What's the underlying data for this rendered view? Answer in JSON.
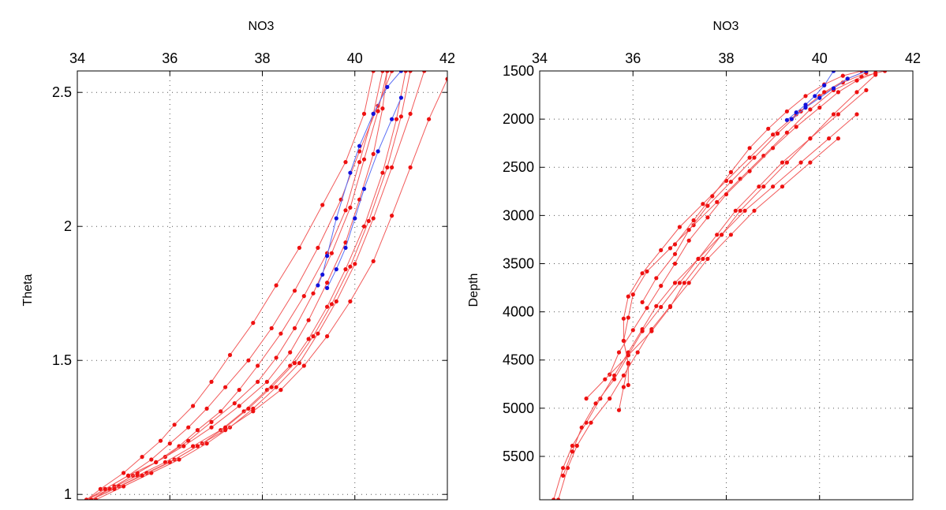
{
  "colors": {
    "profile": "#f25a5a",
    "profile_marker": "#ee1111",
    "highlight": "#5a6ef5",
    "highlight_marker": "#1111dd",
    "grid": "#555555"
  },
  "chart_data": [
    {
      "type": "line",
      "title": "NO3",
      "xlabel": "",
      "ylabel": "Theta",
      "xlim": [
        34,
        42
      ],
      "ylim": [
        0.98,
        2.58
      ],
      "xticks": [
        34,
        36,
        38,
        40,
        42
      ],
      "yticks": [
        1,
        1.5,
        2,
        2.5
      ],
      "x_axis_position": "top",
      "y_reversed": false,
      "grid": true,
      "series": [
        {
          "color": "red",
          "x": [
            34.2,
            34.5,
            35.0,
            35.4,
            35.8,
            36.1,
            36.5,
            36.9,
            37.3,
            37.8,
            38.3,
            38.8,
            39.3,
            39.8,
            40.2,
            40.4
          ],
          "y": [
            0.98,
            1.02,
            1.08,
            1.14,
            1.2,
            1.26,
            1.33,
            1.42,
            1.52,
            1.64,
            1.78,
            1.92,
            2.08,
            2.24,
            2.42,
            2.58
          ]
        },
        {
          "color": "red",
          "x": [
            34.3,
            34.7,
            35.2,
            35.7,
            36.2,
            36.6,
            37.1,
            37.5,
            37.9,
            38.4,
            38.9,
            39.4,
            39.8,
            40.1,
            40.4,
            40.6
          ],
          "y": [
            0.98,
            1.02,
            1.07,
            1.12,
            1.18,
            1.24,
            1.31,
            1.39,
            1.48,
            1.6,
            1.74,
            1.9,
            2.06,
            2.24,
            2.42,
            2.58
          ]
        },
        {
          "color": "red",
          "x": [
            34.2,
            34.6,
            35.1,
            35.6,
            36.0,
            36.4,
            36.8,
            37.2,
            37.7,
            38.2,
            38.7,
            39.2,
            39.7,
            40.1,
            40.5,
            40.8
          ],
          "y": [
            0.98,
            1.02,
            1.07,
            1.13,
            1.19,
            1.25,
            1.32,
            1.4,
            1.5,
            1.62,
            1.76,
            1.92,
            2.1,
            2.28,
            2.45,
            2.58
          ]
        },
        {
          "color": "red",
          "x": [
            34.3,
            34.8,
            35.3,
            35.9,
            36.4,
            36.9,
            37.4,
            37.9,
            38.3,
            38.7,
            39.1,
            39.5,
            39.9,
            40.2,
            40.5,
            40.7
          ],
          "y": [
            0.98,
            1.03,
            1.08,
            1.14,
            1.2,
            1.27,
            1.34,
            1.42,
            1.51,
            1.62,
            1.75,
            1.9,
            2.07,
            2.25,
            2.43,
            2.58
          ]
        },
        {
          "color": "red",
          "x": [
            34.2,
            34.7,
            35.3,
            35.9,
            36.5,
            37.1,
            37.6,
            38.1,
            38.6,
            39.0,
            39.4,
            39.8,
            40.2,
            40.6,
            40.9,
            41.1
          ],
          "y": [
            0.98,
            1.02,
            1.07,
            1.12,
            1.18,
            1.24,
            1.31,
            1.39,
            1.48,
            1.58,
            1.7,
            1.84,
            2.0,
            2.2,
            2.4,
            2.58
          ]
        },
        {
          "color": "red",
          "x": [
            34.3,
            34.9,
            35.5,
            36.1,
            36.7,
            37.2,
            37.7,
            38.2,
            38.7,
            39.1,
            39.5,
            39.9,
            40.3,
            40.7,
            41.0,
            41.2
          ],
          "y": [
            0.98,
            1.03,
            1.08,
            1.13,
            1.19,
            1.25,
            1.32,
            1.4,
            1.49,
            1.59,
            1.71,
            1.85,
            2.02,
            2.22,
            2.41,
            2.58
          ]
        },
        {
          "color": "red",
          "x": [
            34.4,
            35.0,
            35.6,
            36.2,
            36.8,
            37.3,
            37.8,
            38.3,
            38.8,
            39.2,
            39.6,
            40.0,
            40.4,
            40.8,
            41.2,
            41.5
          ],
          "y": [
            0.98,
            1.03,
            1.08,
            1.13,
            1.19,
            1.25,
            1.32,
            1.4,
            1.49,
            1.6,
            1.72,
            1.86,
            2.03,
            2.22,
            2.42,
            2.58
          ]
        },
        {
          "color": "red",
          "x": [
            34.3,
            34.8,
            35.4,
            36.0,
            36.6,
            37.2,
            37.8,
            38.4,
            38.9,
            39.4,
            39.9,
            40.4,
            40.8,
            41.2,
            41.6,
            42.0
          ],
          "y": [
            0.98,
            1.02,
            1.07,
            1.12,
            1.18,
            1.24,
            1.31,
            1.39,
            1.48,
            1.59,
            1.72,
            1.87,
            2.04,
            2.22,
            2.4,
            2.55
          ]
        },
        {
          "color": "red",
          "x": [
            34.2,
            34.6,
            35.1,
            35.7,
            36.3,
            36.9,
            37.5,
            38.1,
            38.6,
            39.0,
            39.4,
            39.8,
            40.1,
            40.4,
            40.6,
            40.7
          ],
          "y": [
            0.98,
            1.02,
            1.07,
            1.12,
            1.18,
            1.25,
            1.33,
            1.42,
            1.53,
            1.65,
            1.79,
            1.94,
            2.1,
            2.27,
            2.44,
            2.58
          ]
        },
        {
          "color": "blue",
          "x": [
            39.2,
            39.3,
            39.4,
            39.6,
            39.9,
            40.1,
            40.4,
            40.7,
            41.0
          ],
          "y": [
            1.78,
            1.82,
            1.89,
            2.03,
            2.2,
            2.3,
            2.42,
            2.52,
            2.58
          ]
        },
        {
          "color": "blue",
          "x": [
            39.4,
            39.6,
            39.8,
            40.0,
            40.2,
            40.5,
            40.8,
            41.0
          ],
          "y": [
            1.77,
            1.84,
            1.92,
            2.03,
            2.14,
            2.28,
            2.4,
            2.48
          ]
        }
      ]
    },
    {
      "type": "line",
      "title": "NO3",
      "xlabel": "",
      "ylabel": "Depth",
      "xlim": [
        34,
        42
      ],
      "ylim": [
        1500,
        5950
      ],
      "xticks": [
        34,
        36,
        38,
        40,
        42
      ],
      "yticks": [
        1500,
        2000,
        2500,
        3000,
        3500,
        4000,
        4500,
        5000,
        5500
      ],
      "x_axis_position": "top",
      "y_reversed": true,
      "grid": true,
      "series": [
        {
          "color": "red",
          "x": [
            34.4,
            34.6,
            34.8,
            35.1,
            35.5,
            35.8,
            36.1,
            36.4,
            36.8,
            37.2,
            37.6,
            38.1,
            38.6,
            39.2,
            39.8,
            40.4
          ],
          "y": [
            5950,
            5620,
            5390,
            5150,
            4900,
            4660,
            4420,
            4180,
            3940,
            3700,
            3450,
            3200,
            2950,
            2700,
            2450,
            2200
          ]
        },
        {
          "color": "red",
          "x": [
            34.3,
            34.5,
            34.7,
            35.0,
            35.3,
            35.6,
            35.9,
            36.2,
            36.5,
            36.9,
            37.4,
            37.9,
            38.4,
            39.0,
            39.6,
            40.2,
            40.8
          ],
          "y": [
            5950,
            5620,
            5390,
            5150,
            4900,
            4660,
            4420,
            4180,
            3940,
            3700,
            3450,
            3200,
            2950,
            2700,
            2450,
            2200,
            1950
          ]
        },
        {
          "color": "red",
          "x": [
            34.5,
            34.7,
            34.9,
            35.2,
            35.6,
            35.9,
            36.2,
            36.6,
            37.0,
            37.4,
            37.8,
            38.2,
            38.7,
            39.2,
            39.8,
            40.4,
            41.0
          ],
          "y": [
            5700,
            5450,
            5200,
            4950,
            4700,
            4450,
            4200,
            3950,
            3700,
            3450,
            3200,
            2950,
            2700,
            2450,
            2200,
            1950,
            1700
          ]
        },
        {
          "color": "red",
          "x": [
            35.7,
            35.8,
            35.9,
            35.8,
            35.9,
            36.0,
            36.3,
            36.8,
            37.3,
            37.8,
            38.3,
            38.8,
            39.3,
            39.8,
            40.3,
            40.9,
            41.4
          ],
          "y": [
            5020,
            4780,
            4540,
            4300,
            4060,
            3820,
            3580,
            3340,
            3100,
            2860,
            2620,
            2380,
            2140,
            1900,
            1700,
            1560,
            1500
          ]
        },
        {
          "color": "red",
          "x": [
            35.9,
            35.9,
            35.8,
            35.8,
            35.9,
            36.2,
            36.6,
            37.0,
            37.5,
            38.0,
            38.5,
            39.0,
            39.5,
            40.0,
            40.5,
            41.0
          ],
          "y": [
            4760,
            4530,
            4300,
            4070,
            3840,
            3600,
            3360,
            3120,
            2880,
            2640,
            2400,
            2160,
            1950,
            1760,
            1620,
            1520
          ]
        },
        {
          "color": "red",
          "x": [
            35.5,
            35.7,
            36.0,
            36.3,
            36.6,
            36.9,
            37.2,
            37.6,
            38.0,
            38.5,
            39.0,
            39.5,
            40.0,
            40.4,
            40.8,
            41.2
          ],
          "y": [
            4650,
            4420,
            4190,
            3960,
            3730,
            3500,
            3260,
            3020,
            2780,
            2540,
            2300,
            2080,
            1880,
            1720,
            1600,
            1520
          ]
        },
        {
          "color": "red",
          "x": [
            35.0,
            35.4,
            35.9,
            36.4,
            36.8,
            37.1,
            37.5,
            37.9,
            38.3,
            38.8,
            39.3,
            39.8,
            40.3,
            40.8,
            41.2
          ],
          "y": [
            4900,
            4700,
            4450,
            4200,
            3950,
            3700,
            3450,
            3200,
            2950,
            2700,
            2450,
            2200,
            1950,
            1720,
            1540
          ]
        },
        {
          "color": "red",
          "x": [
            36.2,
            36.5,
            36.9,
            37.2,
            37.6,
            38.1,
            38.6,
            39.1,
            39.6,
            40.1,
            40.6,
            41.0
          ],
          "y": [
            3900,
            3650,
            3400,
            3150,
            2900,
            2650,
            2400,
            2150,
            1920,
            1720,
            1580,
            1500
          ]
        },
        {
          "color": "red",
          "x": [
            36.9,
            37.3,
            37.7,
            38.1,
            38.5,
            38.9,
            39.3,
            39.7,
            40.1,
            40.5,
            40.9
          ],
          "y": [
            3300,
            3050,
            2800,
            2550,
            2300,
            2100,
            1920,
            1760,
            1640,
            1550,
            1500
          ]
        },
        {
          "color": "blue",
          "x": [
            39.3,
            39.5,
            39.7,
            39.9,
            40.1,
            40.3
          ],
          "y": [
            2010,
            1930,
            1850,
            1760,
            1650,
            1500
          ]
        },
        {
          "color": "blue",
          "x": [
            39.4,
            39.7,
            40.0,
            40.3,
            40.6,
            41.0
          ],
          "y": [
            2000,
            1880,
            1780,
            1680,
            1580,
            1500
          ]
        }
      ]
    }
  ]
}
